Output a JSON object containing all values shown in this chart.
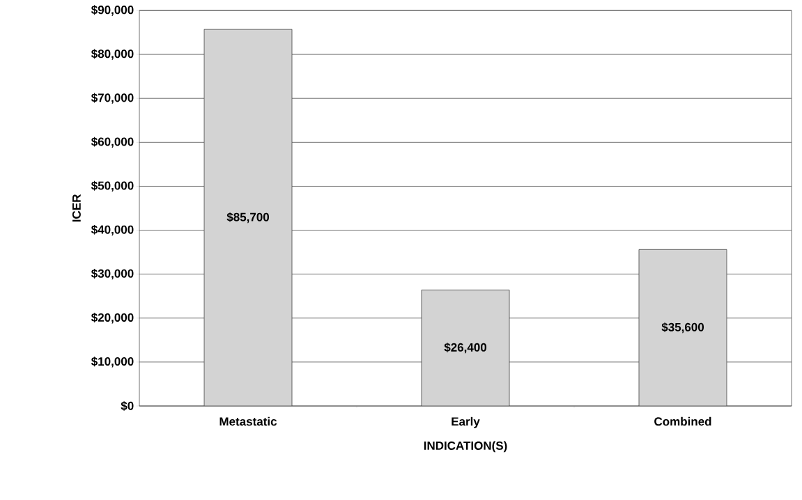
{
  "chart_data": {
    "type": "bar",
    "xlabel": "INDICATION(S)",
    "ylabel": "ICER",
    "categories": [
      "Metastatic",
      "Early",
      "Combined"
    ],
    "values": [
      85700,
      26400,
      35600
    ],
    "value_labels": [
      "$85,700",
      "$26,400",
      "$35,600"
    ],
    "color": "#d3d3d3",
    "ylim": [
      0,
      90000
    ],
    "yticks": [
      {
        "value": 0,
        "label": "$0"
      },
      {
        "value": 10000,
        "label": "$10,000"
      },
      {
        "value": 20000,
        "label": "$20,000"
      },
      {
        "value": 30000,
        "label": "$30,000"
      },
      {
        "value": 40000,
        "label": "$40,000"
      },
      {
        "value": 50000,
        "label": "$50,000"
      },
      {
        "value": 60000,
        "label": "$60,000"
      },
      {
        "value": 70000,
        "label": "$70,000"
      },
      {
        "value": 80000,
        "label": "$80,000"
      },
      {
        "value": 90000,
        "label": "$90,000"
      }
    ],
    "grid": "y"
  }
}
